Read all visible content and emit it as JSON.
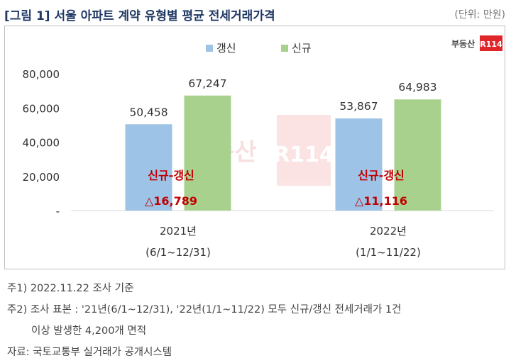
{
  "title": "[그림 1] 서울 아파트 계약 유형별 평균 전세거래가격",
  "unit": "(단위: 만원)",
  "logo": {
    "text": "부동산",
    "mark": "R114"
  },
  "watermark": {
    "text": "부동산",
    "mark": "R114"
  },
  "colors": {
    "renewal": "#9dc3e6",
    "new": "#a9d18e",
    "diff": "#c00000",
    "title": "#1f3864"
  },
  "chart_data": {
    "type": "bar",
    "categories": [
      "2021년",
      "2022년"
    ],
    "category_periods": [
      "(6/1~12/31)",
      "(1/1~11/22)"
    ],
    "series": [
      {
        "name": "갱신",
        "values": [
          50458,
          53867
        ],
        "labels": [
          "50,458",
          "53,867"
        ]
      },
      {
        "name": "신규",
        "values": [
          67247,
          64983
        ],
        "labels": [
          "67,247",
          "64,983"
        ]
      }
    ],
    "ylim": [
      0,
      80000
    ],
    "yticks": [
      "-",
      "20,000",
      "40,000",
      "60,000",
      "80,000"
    ],
    "annotations": [
      {
        "title": "신규-갱신",
        "value": "△16,789"
      },
      {
        "title": "신규-갱신",
        "value": "△11,116"
      }
    ],
    "legend_position": "top"
  },
  "notes": [
    "주1) 2022.11.22 조사 기준",
    "주2) 조사 표본 : '21년(6/1~12/31), '22년(1/1~11/22) 모두 신규/갱신 전세거래가 1건",
    "이상 발생한 4,200개 면적",
    "자료: 국토교통부 실거래가 공개시스템"
  ]
}
